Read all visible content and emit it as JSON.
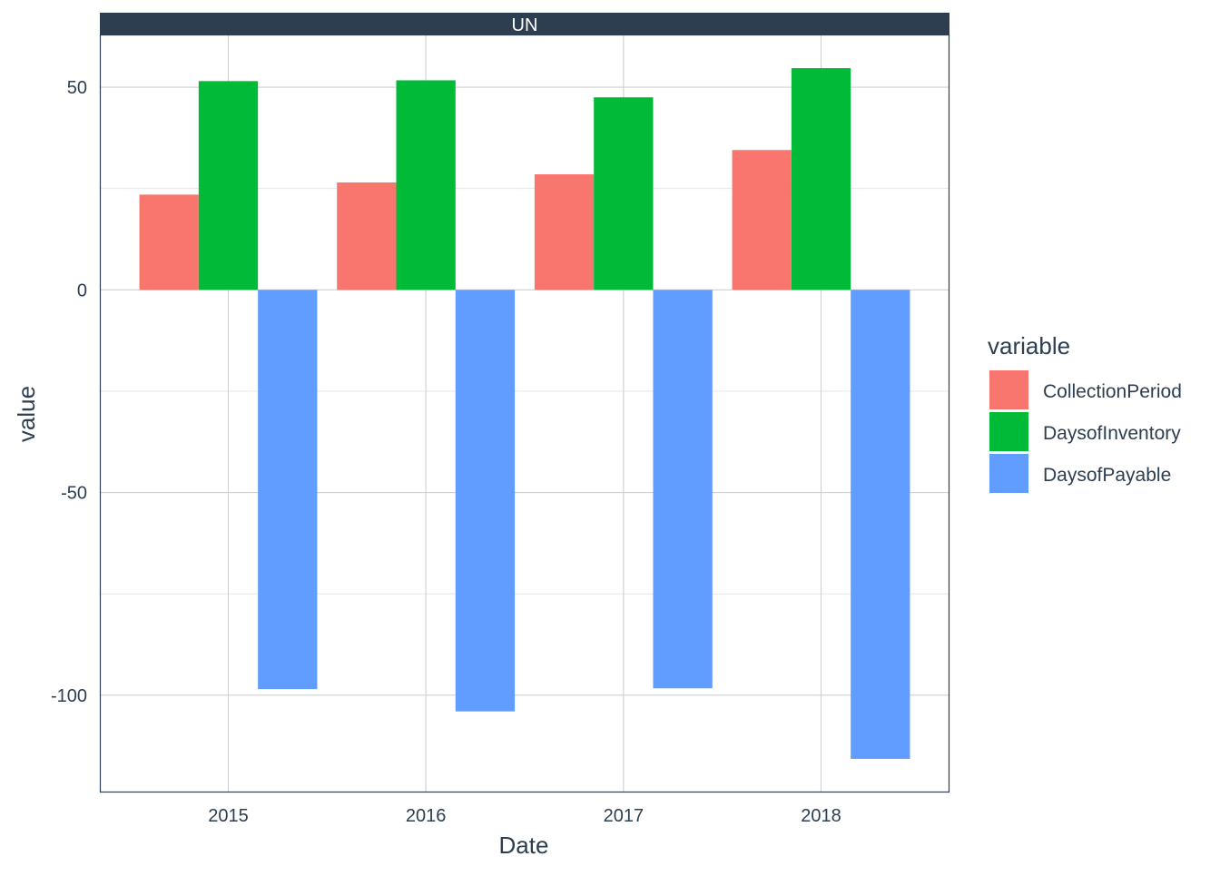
{
  "chart_data": {
    "type": "bar",
    "facet_label": "UN",
    "xlabel": "Date",
    "ylabel": "value",
    "categories": [
      "2015",
      "2016",
      "2017",
      "2018"
    ],
    "series": [
      {
        "name": "CollectionPeriod",
        "color": "#F8766D",
        "values": [
          23.5,
          26.5,
          28.5,
          34.5
        ]
      },
      {
        "name": "DaysofInventory",
        "color": "#00BA38",
        "values": [
          51.5,
          51.7,
          47.5,
          54.7
        ]
      },
      {
        "name": "DaysofPayable",
        "color": "#619CFF",
        "values": [
          -98.5,
          -104,
          -98.3,
          -115.7
        ]
      }
    ],
    "ylim": [
      -124,
      63
    ],
    "yticks": [
      50,
      0,
      -50,
      -100
    ],
    "ytick_labels": [
      "50",
      "0",
      "-50",
      "-100"
    ],
    "grid": true,
    "legend": {
      "title": "variable",
      "position": "right"
    }
  }
}
